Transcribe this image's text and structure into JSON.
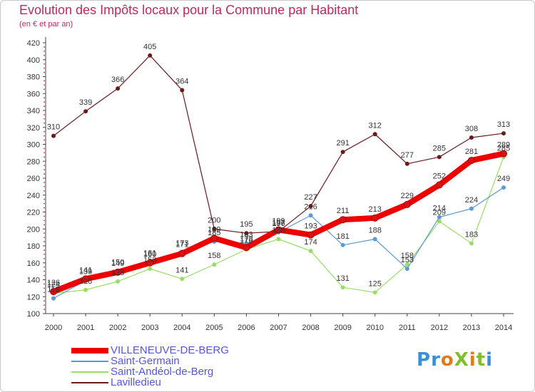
{
  "title": "Evolution des Impôts locaux pour la Commune par Habitant",
  "subtitle": "(en € et par an)",
  "logo_text": "ProXiti",
  "chart_data": {
    "type": "line",
    "x": [
      "2000",
      "2001",
      "2002",
      "2003",
      "2004",
      "2005",
      "2006",
      "2007",
      "2008",
      "2009",
      "2010",
      "2011",
      "2012",
      "2013",
      "2014"
    ],
    "ylim": [
      100,
      420
    ],
    "yticks": [
      100,
      120,
      140,
      160,
      180,
      200,
      220,
      240,
      260,
      280,
      300,
      320,
      340,
      360,
      380,
      400,
      420
    ],
    "grid": false,
    "legend": "bottom-left",
    "series": [
      {
        "name": "Lavilledieu",
        "color": "#6b1a1a",
        "width": 1.2,
        "marker": "#6b1a1a",
        "values": [
          310,
          339,
          366,
          405,
          364,
          200,
          195,
          197,
          227,
          291,
          312,
          277,
          285,
          308,
          313
        ],
        "labels": [
          "310",
          "339",
          "366",
          "405",
          "364",
          "200",
          "195",
          "197",
          "227",
          "291",
          "312",
          "277",
          "285",
          "308",
          "313"
        ]
      },
      {
        "name": "Saint-Andéol-de-Berg",
        "color": "#99dd66",
        "width": 1.2,
        "marker": "#99dd66",
        "values": [
          124,
          128,
          138,
          153,
          141,
          158,
          176,
          188,
          174,
          131,
          125,
          158,
          209,
          183,
          285
        ],
        "labels": [
          "124",
          "128",
          "138",
          "153",
          "141",
          "158",
          "176",
          "188",
          "174",
          "131",
          "125",
          "158",
          "209",
          "183",
          "285"
        ]
      },
      {
        "name": "Saint-Germain",
        "color": "#5b9bd5",
        "width": 1.2,
        "marker": "#5b9bd5",
        "values": [
          118,
          139,
          150,
          161,
          173,
          185,
          183,
          196,
          216,
          181,
          188,
          153,
          214,
          224,
          249
        ],
        "labels": [
          "118",
          "139",
          "150",
          "161",
          "173",
          "185",
          "183",
          "196",
          "216",
          "181",
          "188",
          "153",
          "214",
          "224",
          "249"
        ]
      },
      {
        "name": "VILLENEUVE-DE-BERG",
        "color": "#ee0000",
        "width": 8,
        "marker": "#dd1111",
        "values": [
          126,
          141,
          149,
          160,
          171,
          189,
          178,
          199,
          193,
          211,
          213,
          229,
          252,
          281,
          289
        ],
        "labels": [
          "126",
          "141",
          "149",
          "160",
          "171",
          "189",
          "178",
          "199",
          "193",
          "211",
          "213",
          "229",
          "252",
          "281",
          "289"
        ]
      }
    ]
  },
  "legend": [
    {
      "label": "VILLENEUVE-DE-BERG",
      "color": "#ee0000",
      "thickness": 8
    },
    {
      "label": "Saint-Germain",
      "color": "#5b9bd5",
      "thickness": 2
    },
    {
      "label": "Saint-Andéol-de-Berg",
      "color": "#99dd66",
      "thickness": 2
    },
    {
      "label": "Lavilledieu",
      "color": "#6b1a1a",
      "thickness": 2
    }
  ]
}
